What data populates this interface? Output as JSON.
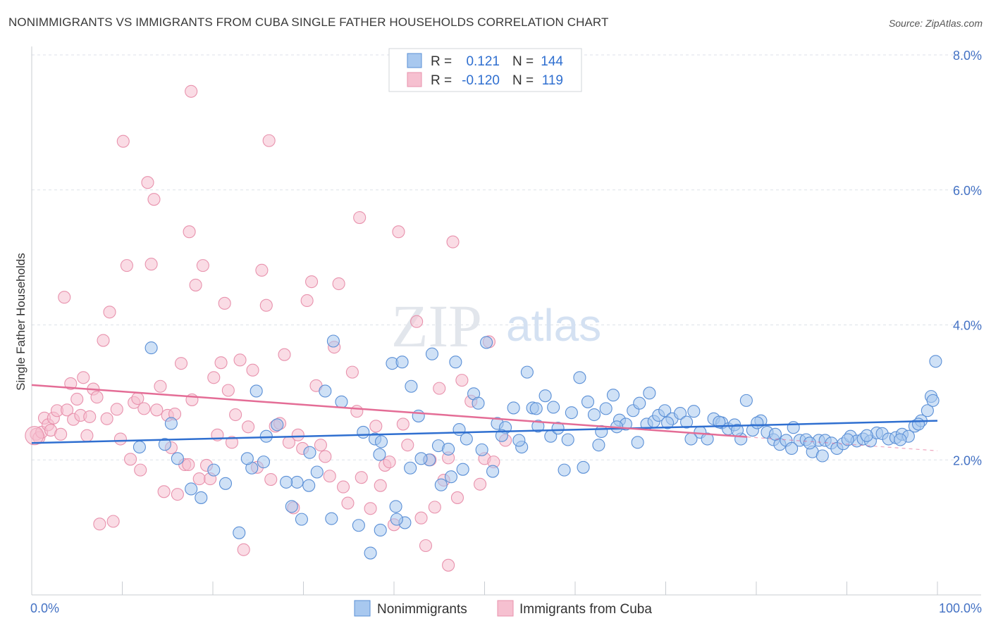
{
  "header": {
    "title": "NONIMMIGRANTS VS IMMIGRANTS FROM CUBA SINGLE FATHER HOUSEHOLDS CORRELATION CHART",
    "source": "Source: ZipAtlas.com"
  },
  "watermark": {
    "zip": "ZIP",
    "atlas": "atlas"
  },
  "legend": {
    "rows": [
      {
        "r_label": "R =",
        "r_value": "0.121",
        "n_label": "N =",
        "n_value": "144"
      },
      {
        "r_label": "R =",
        "r_value": "-0.120",
        "n_label": "N =",
        "n_value": "119"
      }
    ]
  },
  "bottom_legend": [
    "Nonimmigrants",
    "Immigrants from Cuba"
  ],
  "colors": {
    "blue_fill": "#a8c8ef",
    "blue_stroke": "#5a8fd6",
    "blue_line": "#2f6fd0",
    "pink_fill": "#f6c0d0",
    "pink_stroke": "#e892ad",
    "pink_line": "#e46d96",
    "tick_text": "#4472c4",
    "grid": "#dde2e8"
  },
  "chart_data": {
    "type": "scatter",
    "title": "NONIMMIGRANTS VS IMMIGRANTS FROM CUBA SINGLE FATHER HOUSEHOLDS CORRELATION CHART",
    "xlabel": "",
    "ylabel": "Single Father Households",
    "xlim": [
      0,
      100
    ],
    "ylim": [
      0,
      8.0
    ],
    "x_tick_labels": [
      "0.0%",
      "100.0%"
    ],
    "y_ticks": [
      2.0,
      4.0,
      6.0,
      8.0
    ],
    "y_tick_labels": [
      "2.0%",
      "4.0%",
      "6.0%",
      "8.0%"
    ],
    "grid": true,
    "legend_placement": "top-center",
    "series": [
      {
        "name": "Nonimmigrants",
        "r": 0.121,
        "n": 144,
        "trend": {
          "x": [
            0,
            100
          ],
          "y": [
            2.25,
            2.58
          ]
        },
        "points": [
          [
            25.6,
            1.97
          ],
          [
            28.7,
            1.31
          ],
          [
            29.3,
            1.67
          ],
          [
            28.1,
            1.67
          ],
          [
            30.6,
            1.62
          ],
          [
            31.5,
            1.82
          ],
          [
            32.4,
            3.02
          ],
          [
            33.3,
            3.76
          ],
          [
            34.2,
            2.86
          ],
          [
            36.6,
            2.41
          ],
          [
            37.9,
            2.31
          ],
          [
            38.6,
            2.27
          ],
          [
            38.4,
            2.08
          ],
          [
            39.8,
            3.43
          ],
          [
            40.2,
            1.31
          ],
          [
            40.9,
            3.45
          ],
          [
            41.9,
            3.09
          ],
          [
            42.7,
            2.65
          ],
          [
            44.2,
            3.57
          ],
          [
            44.9,
            2.21
          ],
          [
            45.2,
            1.63
          ],
          [
            46.0,
            2.16
          ],
          [
            46.8,
            3.45
          ],
          [
            47.2,
            2.45
          ],
          [
            48.0,
            2.31
          ],
          [
            48.8,
            2.98
          ],
          [
            49.7,
            2.15
          ],
          [
            50.2,
            3.74
          ],
          [
            51.4,
            2.54
          ],
          [
            52.3,
            2.48
          ],
          [
            53.2,
            2.77
          ],
          [
            54.1,
            2.19
          ],
          [
            54.7,
            3.3
          ],
          [
            55.3,
            2.77
          ],
          [
            55.9,
            2.5
          ],
          [
            56.7,
            2.95
          ],
          [
            57.3,
            2.35
          ],
          [
            58.1,
            2.47
          ],
          [
            58.8,
            1.85
          ],
          [
            59.6,
            2.7
          ],
          [
            60.5,
            3.22
          ],
          [
            61.4,
            2.86
          ],
          [
            62.1,
            2.67
          ],
          [
            62.9,
            2.42
          ],
          [
            63.4,
            2.76
          ],
          [
            64.2,
            2.96
          ],
          [
            64.9,
            2.59
          ],
          [
            65.6,
            2.53
          ],
          [
            66.4,
            2.73
          ],
          [
            67.1,
            2.84
          ],
          [
            67.9,
            2.53
          ],
          [
            68.7,
            2.57
          ],
          [
            69.2,
            2.66
          ],
          [
            69.9,
            2.73
          ],
          [
            70.7,
            2.61
          ],
          [
            71.6,
            2.69
          ],
          [
            72.3,
            2.56
          ],
          [
            73.1,
            2.72
          ],
          [
            73.8,
            2.41
          ],
          [
            74.6,
            2.31
          ],
          [
            75.3,
            2.61
          ],
          [
            76.2,
            2.55
          ],
          [
            76.9,
            2.46
          ],
          [
            77.6,
            2.52
          ],
          [
            78.3,
            2.31
          ],
          [
            78.9,
            2.88
          ],
          [
            79.6,
            2.44
          ],
          [
            80.5,
            2.58
          ],
          [
            81.2,
            2.41
          ],
          [
            81.9,
            2.3
          ],
          [
            82.6,
            2.23
          ],
          [
            83.3,
            2.29
          ],
          [
            84.1,
            2.48
          ],
          [
            84.8,
            2.29
          ],
          [
            85.5,
            2.3
          ],
          [
            86.2,
            2.12
          ],
          [
            86.9,
            2.29
          ],
          [
            87.6,
            2.29
          ],
          [
            88.3,
            2.25
          ],
          [
            88.9,
            2.17
          ],
          [
            89.6,
            2.24
          ],
          [
            90.4,
            2.35
          ],
          [
            91.1,
            2.28
          ],
          [
            91.8,
            2.31
          ],
          [
            92.6,
            2.28
          ],
          [
            93.3,
            2.4
          ],
          [
            93.9,
            2.39
          ],
          [
            94.6,
            2.31
          ],
          [
            95.4,
            2.33
          ],
          [
            96.1,
            2.38
          ],
          [
            96.8,
            2.35
          ],
          [
            97.5,
            2.5
          ],
          [
            98.2,
            2.58
          ],
          [
            98.9,
            2.73
          ],
          [
            99.3,
            2.94
          ],
          [
            99.8,
            3.46
          ],
          [
            99.5,
            2.88
          ],
          [
            97.9,
            2.53
          ],
          [
            95.9,
            2.3
          ],
          [
            92.2,
            2.36
          ],
          [
            90.1,
            2.3
          ],
          [
            87.3,
            2.06
          ],
          [
            85.9,
            2.25
          ],
          [
            83.9,
            2.17
          ],
          [
            82.1,
            2.38
          ],
          [
            80.1,
            2.55
          ],
          [
            77.9,
            2.44
          ],
          [
            75.9,
            2.56
          ],
          [
            72.8,
            2.31
          ],
          [
            70.2,
            2.55
          ],
          [
            68.2,
            2.99
          ],
          [
            66.9,
            2.26
          ],
          [
            64.6,
            2.49
          ],
          [
            62.6,
            2.22
          ],
          [
            60.9,
            1.89
          ],
          [
            59.2,
            2.3
          ],
          [
            57.6,
            2.78
          ],
          [
            55.7,
            2.76
          ],
          [
            53.8,
            2.29
          ],
          [
            51.9,
            2.36
          ],
          [
            50.9,
            1.83
          ],
          [
            49.3,
            2.84
          ],
          [
            47.6,
            1.86
          ],
          [
            46.3,
            1.75
          ],
          [
            43.9,
            2.0
          ],
          [
            43.0,
            2.02
          ],
          [
            41.8,
            1.88
          ],
          [
            41.2,
            1.07
          ],
          [
            40.3,
            1.12
          ],
          [
            38.5,
            0.96
          ],
          [
            37.4,
            0.62
          ],
          [
            36.1,
            1.03
          ],
          [
            33.1,
            1.13
          ],
          [
            30.7,
            2.11
          ],
          [
            29.8,
            1.12
          ],
          [
            27.1,
            2.52
          ],
          [
            25.9,
            2.35
          ],
          [
            24.8,
            3.02
          ],
          [
            24.3,
            1.88
          ],
          [
            23.8,
            2.02
          ],
          [
            22.9,
            0.92
          ],
          [
            21.4,
            1.65
          ],
          [
            20.1,
            1.85
          ],
          [
            18.7,
            1.44
          ],
          [
            17.6,
            1.57
          ],
          [
            16.1,
            2.02
          ],
          [
            15.4,
            2.54
          ],
          [
            14.7,
            2.23
          ],
          [
            13.2,
            3.66
          ],
          [
            11.9,
            2.19
          ]
        ]
      },
      {
        "name": "Immigrants from Cuba",
        "r": -0.12,
        "n": 119,
        "trend": {
          "x": [
            0,
            79
          ],
          "y": [
            3.11,
            2.34
          ]
        },
        "points": [
          [
            0.5,
            2.38
          ],
          [
            0.8,
            2.33
          ],
          [
            1.1,
            2.41
          ],
          [
            1.4,
            2.62
          ],
          [
            1.8,
            2.52
          ],
          [
            2.1,
            2.44
          ],
          [
            2.4,
            2.62
          ],
          [
            2.8,
            2.73
          ],
          [
            3.2,
            2.38
          ],
          [
            3.6,
            4.41
          ],
          [
            3.9,
            2.74
          ],
          [
            4.3,
            3.13
          ],
          [
            4.6,
            2.6
          ],
          [
            5.0,
            2.9
          ],
          [
            5.4,
            2.66
          ],
          [
            5.7,
            3.22
          ],
          [
            6.1,
            2.36
          ],
          [
            6.4,
            2.64
          ],
          [
            6.8,
            3.05
          ],
          [
            7.2,
            2.93
          ],
          [
            7.5,
            1.05
          ],
          [
            7.9,
            3.77
          ],
          [
            8.3,
            2.61
          ],
          [
            8.6,
            4.19
          ],
          [
            9.0,
            1.09
          ],
          [
            9.4,
            2.75
          ],
          [
            9.8,
            2.31
          ],
          [
            10.1,
            6.72
          ],
          [
            10.5,
            4.88
          ],
          [
            10.9,
            2.01
          ],
          [
            11.3,
            2.85
          ],
          [
            11.7,
            2.91
          ],
          [
            12.0,
            1.85
          ],
          [
            12.4,
            2.76
          ],
          [
            12.8,
            6.11
          ],
          [
            13.2,
            4.9
          ],
          [
            13.5,
            5.86
          ],
          [
            13.8,
            2.74
          ],
          [
            14.2,
            3.09
          ],
          [
            14.6,
            1.53
          ],
          [
            15.0,
            2.66
          ],
          [
            15.4,
            2.18
          ],
          [
            15.8,
            2.68
          ],
          [
            16.1,
            1.49
          ],
          [
            16.5,
            3.43
          ],
          [
            16.9,
            1.93
          ],
          [
            17.3,
            1.93
          ],
          [
            17.7,
            2.89
          ],
          [
            18.1,
            4.59
          ],
          [
            18.5,
            1.72
          ],
          [
            18.9,
            4.88
          ],
          [
            19.3,
            1.92
          ],
          [
            19.7,
            1.72
          ],
          [
            20.1,
            3.22
          ],
          [
            20.5,
            2.37
          ],
          [
            20.9,
            3.44
          ],
          [
            21.3,
            4.32
          ],
          [
            21.7,
            3.03
          ],
          [
            22.1,
            2.26
          ],
          [
            22.5,
            2.67
          ],
          [
            23.0,
            3.48
          ],
          [
            23.4,
            0.67
          ],
          [
            23.9,
            2.49
          ],
          [
            24.4,
            3.33
          ],
          [
            24.9,
            1.89
          ],
          [
            25.4,
            4.81
          ],
          [
            25.9,
            4.29
          ],
          [
            26.4,
            1.71
          ],
          [
            26.9,
            2.5
          ],
          [
            27.4,
            2.54
          ],
          [
            27.9,
            3.56
          ],
          [
            28.4,
            2.26
          ],
          [
            28.9,
            1.29
          ],
          [
            29.4,
            2.37
          ],
          [
            29.9,
            2.17
          ],
          [
            30.4,
            4.36
          ],
          [
            30.9,
            4.64
          ],
          [
            31.4,
            3.1
          ],
          [
            31.9,
            2.22
          ],
          [
            32.4,
            2.05
          ],
          [
            32.9,
            1.76
          ],
          [
            33.4,
            3.67
          ],
          [
            33.9,
            4.61
          ],
          [
            34.4,
            1.6
          ],
          [
            34.9,
            1.36
          ],
          [
            35.4,
            3.3
          ],
          [
            35.9,
            2.72
          ],
          [
            36.4,
            1.74
          ],
          [
            37.4,
            1.28
          ],
          [
            38.0,
            2.5
          ],
          [
            38.5,
            1.62
          ],
          [
            39.0,
            1.92
          ],
          [
            39.5,
            1.97
          ],
          [
            40.0,
            1.04
          ],
          [
            40.5,
            5.38
          ],
          [
            41.0,
            2.53
          ],
          [
            41.5,
            2.22
          ],
          [
            42.5,
            4.05
          ],
          [
            43.0,
            1.14
          ],
          [
            43.5,
            0.73
          ],
          [
            44.0,
            2.0
          ],
          [
            44.5,
            1.3
          ],
          [
            45.0,
            3.06
          ],
          [
            45.5,
            1.7
          ],
          [
            46.0,
            0.44
          ],
          [
            46.5,
            5.23
          ],
          [
            47.0,
            1.44
          ],
          [
            47.5,
            3.18
          ],
          [
            48.5,
            2.87
          ],
          [
            49.5,
            1.64
          ],
          [
            50.0,
            2.02
          ],
          [
            50.5,
            3.75
          ],
          [
            51.0,
            1.97
          ],
          [
            17.4,
            5.38
          ],
          [
            17.6,
            7.46
          ],
          [
            26.2,
            6.73
          ],
          [
            36.2,
            5.59
          ],
          [
            46.0,
            2.03
          ],
          [
            52.3,
            2.29
          ]
        ]
      }
    ]
  }
}
